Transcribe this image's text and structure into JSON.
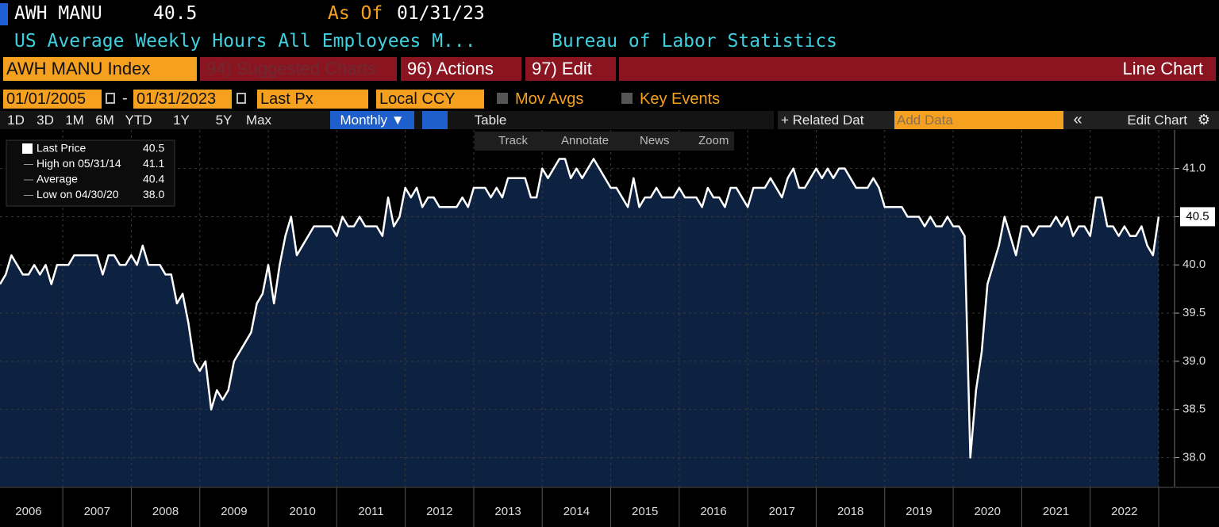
{
  "header": {
    "ticker": "AWH MANU",
    "last": "40.5",
    "as_of_label": "As Of",
    "as_of_date": "01/31/23",
    "description": "US Average Weekly Hours All Employees M...",
    "source": "Bureau of Labor Statistics"
  },
  "toolbar": {
    "security": "AWH MANU Index",
    "suggested": "94) Suggested Charts",
    "actions": "96) Actions",
    "edit": "97) Edit",
    "chart_type": "Line Chart"
  },
  "controls": {
    "start_date": "01/01/2005",
    "separator": "-",
    "end_date": "01/31/2023",
    "field": "Last Px",
    "currency": "Local CCY",
    "mov_avgs": "Mov Avgs",
    "key_events": "Key Events"
  },
  "periods": [
    "1D",
    "3D",
    "1M",
    "6M",
    "YTD",
    "1Y",
    "5Y",
    "Max"
  ],
  "frequency": "Monthly ▼",
  "table": "Table",
  "related": "+ Related Dat",
  "add_data": "Add Data",
  "edit_chart": "Edit Chart",
  "chart_tools": [
    "Track",
    "Annotate",
    "News",
    "Zoom"
  ],
  "chart_data": {
    "type": "line",
    "color": "#ffffff",
    "fill": "#0d2140",
    "grid": true,
    "legend": [
      {
        "label": "Last Price",
        "value": "40.5"
      },
      {
        "label": "High on 05/31/14",
        "value": "41.1"
      },
      {
        "label": "Average",
        "value": "40.4"
      },
      {
        "label": "Low on 04/30/20",
        "value": "38.0"
      }
    ],
    "last_label": "40.5",
    "ylim": [
      37.7,
      41.4
    ],
    "yticks": [
      {
        "value": 38,
        "label": "38.0"
      },
      {
        "value": 38.5,
        "label": "38.5"
      },
      {
        "value": 39,
        "label": "39.0"
      },
      {
        "value": 39.5,
        "label": "39.5"
      },
      {
        "value": 40,
        "label": "40.0"
      },
      {
        "value": 40.5,
        "label": "40.5"
      },
      {
        "value": 41,
        "label": "41.0"
      }
    ],
    "xticks": [
      2006,
      2007,
      2008,
      2009,
      2010,
      2011,
      2012,
      2013,
      2014,
      2015,
      2016,
      2017,
      2018,
      2019,
      2020,
      2021,
      2022
    ],
    "x": [
      "2006-02",
      "2006-03",
      "2006-04",
      "2006-05",
      "2006-06",
      "2006-07",
      "2006-08",
      "2006-09",
      "2006-10",
      "2006-11",
      "2006-12",
      "2007-01",
      "2007-02",
      "2007-03",
      "2007-04",
      "2007-05",
      "2007-06",
      "2007-07",
      "2007-08",
      "2007-09",
      "2007-10",
      "2007-11",
      "2007-12",
      "2008-01",
      "2008-02",
      "2008-03",
      "2008-04",
      "2008-05",
      "2008-06",
      "2008-07",
      "2008-08",
      "2008-09",
      "2008-10",
      "2008-11",
      "2008-12",
      "2009-01",
      "2009-02",
      "2009-03",
      "2009-04",
      "2009-05",
      "2009-06",
      "2009-07",
      "2009-08",
      "2009-09",
      "2009-10",
      "2009-11",
      "2009-12",
      "2010-01",
      "2010-02",
      "2010-03",
      "2010-04",
      "2010-05",
      "2010-06",
      "2010-07",
      "2010-08",
      "2010-09",
      "2010-10",
      "2010-11",
      "2010-12",
      "2011-01",
      "2011-02",
      "2011-03",
      "2011-04",
      "2011-05",
      "2011-06",
      "2011-07",
      "2011-08",
      "2011-09",
      "2011-10",
      "2011-11",
      "2011-12",
      "2012-01",
      "2012-02",
      "2012-03",
      "2012-04",
      "2012-05",
      "2012-06",
      "2012-07",
      "2012-08",
      "2012-09",
      "2012-10",
      "2012-11",
      "2012-12",
      "2013-01",
      "2013-02",
      "2013-03",
      "2013-04",
      "2013-05",
      "2013-06",
      "2013-07",
      "2013-08",
      "2013-09",
      "2013-10",
      "2013-11",
      "2013-12",
      "2014-01",
      "2014-02",
      "2014-03",
      "2014-04",
      "2014-05",
      "2014-06",
      "2014-07",
      "2014-08",
      "2014-09",
      "2014-10",
      "2014-11",
      "2014-12",
      "2015-01",
      "2015-02",
      "2015-03",
      "2015-04",
      "2015-05",
      "2015-06",
      "2015-07",
      "2015-08",
      "2015-09",
      "2015-10",
      "2015-11",
      "2015-12",
      "2016-01",
      "2016-02",
      "2016-03",
      "2016-04",
      "2016-05",
      "2016-06",
      "2016-07",
      "2016-08",
      "2016-09",
      "2016-10",
      "2016-11",
      "2016-12",
      "2017-01",
      "2017-02",
      "2017-03",
      "2017-04",
      "2017-05",
      "2017-06",
      "2017-07",
      "2017-08",
      "2017-09",
      "2017-10",
      "2017-11",
      "2017-12",
      "2018-01",
      "2018-02",
      "2018-03",
      "2018-04",
      "2018-05",
      "2018-06",
      "2018-07",
      "2018-08",
      "2018-09",
      "2018-10",
      "2018-11",
      "2018-12",
      "2019-01",
      "2019-02",
      "2019-03",
      "2019-04",
      "2019-05",
      "2019-06",
      "2019-07",
      "2019-08",
      "2019-09",
      "2019-10",
      "2019-11",
      "2019-12",
      "2020-01",
      "2020-02",
      "2020-03",
      "2020-04",
      "2020-05",
      "2020-06",
      "2020-07",
      "2020-08",
      "2020-09",
      "2020-10",
      "2020-11",
      "2020-12",
      "2021-01",
      "2021-02",
      "2021-03",
      "2021-04",
      "2021-05",
      "2021-06",
      "2021-07",
      "2021-08",
      "2021-09",
      "2021-10",
      "2021-11",
      "2021-12",
      "2022-01",
      "2022-02",
      "2022-03",
      "2022-04",
      "2022-05",
      "2022-06",
      "2022-07",
      "2022-08",
      "2022-09",
      "2022-10",
      "2022-11",
      "2022-12",
      "2023-01"
    ],
    "values": [
      39.8,
      39.9,
      40.1,
      40.0,
      39.9,
      39.9,
      40.0,
      39.9,
      40.0,
      39.8,
      40.0,
      40.0,
      40.0,
      40.1,
      40.1,
      40.1,
      40.1,
      40.1,
      39.9,
      40.1,
      40.1,
      40.0,
      40.0,
      40.1,
      40.0,
      40.2,
      40.0,
      40.0,
      40.0,
      39.9,
      39.9,
      39.6,
      39.7,
      39.4,
      39.0,
      38.9,
      39.0,
      38.5,
      38.7,
      38.6,
      38.7,
      39.0,
      39.1,
      39.2,
      39.3,
      39.6,
      39.7,
      40.0,
      39.6,
      40.0,
      40.3,
      40.5,
      40.1,
      40.2,
      40.3,
      40.4,
      40.4,
      40.4,
      40.4,
      40.3,
      40.5,
      40.4,
      40.4,
      40.5,
      40.4,
      40.4,
      40.4,
      40.3,
      40.7,
      40.4,
      40.5,
      40.8,
      40.7,
      40.8,
      40.6,
      40.7,
      40.7,
      40.6,
      40.6,
      40.6,
      40.6,
      40.7,
      40.6,
      40.8,
      40.8,
      40.8,
      40.7,
      40.8,
      40.7,
      40.9,
      40.9,
      40.9,
      40.9,
      40.7,
      40.7,
      41.0,
      40.9,
      41.0,
      41.1,
      41.1,
      40.9,
      41.0,
      40.9,
      41.0,
      41.1,
      41.0,
      40.9,
      40.8,
      40.8,
      40.7,
      40.6,
      40.9,
      40.6,
      40.7,
      40.7,
      40.8,
      40.7,
      40.7,
      40.7,
      40.8,
      40.7,
      40.7,
      40.7,
      40.6,
      40.8,
      40.7,
      40.7,
      40.6,
      40.8,
      40.8,
      40.7,
      40.6,
      40.8,
      40.8,
      40.8,
      40.9,
      40.8,
      40.7,
      40.9,
      41.0,
      40.8,
      40.8,
      40.9,
      41.0,
      40.9,
      41.0,
      40.9,
      41.0,
      41.0,
      40.9,
      40.8,
      40.8,
      40.8,
      40.9,
      40.8,
      40.6,
      40.6,
      40.6,
      40.6,
      40.5,
      40.5,
      40.5,
      40.4,
      40.5,
      40.4,
      40.4,
      40.5,
      40.4,
      40.4,
      40.3,
      38.0,
      38.7,
      39.1,
      39.8,
      40.0,
      40.2,
      40.5,
      40.3,
      40.1,
      40.4,
      40.4,
      40.3,
      40.4,
      40.4,
      40.4,
      40.5,
      40.4,
      40.5,
      40.3,
      40.4,
      40.4,
      40.3,
      40.7,
      40.7,
      40.4,
      40.4,
      40.3,
      40.4,
      40.3,
      40.3,
      40.4,
      40.2,
      40.1,
      40.5
    ]
  }
}
